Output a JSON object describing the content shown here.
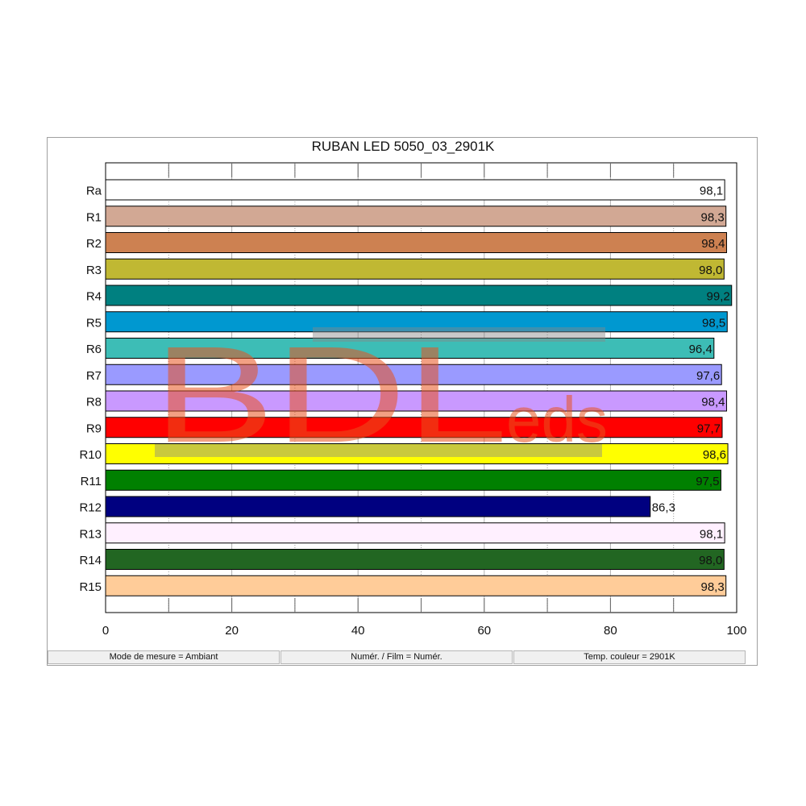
{
  "chart_data": {
    "type": "bar",
    "orientation": "horizontal",
    "title": "RUBAN LED 5050_03_2901K",
    "categories": [
      "Ra",
      "R1",
      "R2",
      "R3",
      "R4",
      "R5",
      "R6",
      "R7",
      "R8",
      "R9",
      "R10",
      "R11",
      "R12",
      "R13",
      "R14",
      "R15"
    ],
    "values": [
      98.1,
      98.3,
      98.4,
      98.0,
      99.2,
      98.5,
      96.4,
      97.6,
      98.4,
      97.7,
      98.6,
      97.5,
      86.3,
      98.1,
      98.0,
      98.3
    ],
    "value_labels": [
      "98,1",
      "98,3",
      "98,4",
      "98,0",
      "99,2",
      "98,5",
      "96,4",
      "97,6",
      "98,4",
      "97,7",
      "98,6",
      "97,5",
      "86,3",
      "98,1",
      "98,0",
      "98,3"
    ],
    "colors": [
      "#ffffff",
      "#d2a894",
      "#cd8151",
      "#c0b833",
      "#008080",
      "#0098d0",
      "#3dbdb6",
      "#9a9aff",
      "#c999ff",
      "#ff0000",
      "#ffff00",
      "#008000",
      "#000080",
      "#fff0ff",
      "#226622",
      "#ffcc99"
    ],
    "xlim": [
      0,
      100
    ],
    "xticks": [
      0,
      20,
      40,
      60,
      80,
      100
    ],
    "xtick_labels": [
      "0",
      "20",
      "40",
      "60",
      "80",
      "100"
    ],
    "grid": "vertical dotted every 10, solid every 20"
  },
  "status_bar": {
    "mode": "Mode de mesure = Ambiant",
    "film": "Numér. / Film = Numér.",
    "temp": "Temp. couleur = 2901K"
  },
  "watermark": {
    "main": "BDL",
    "suffix": "eds",
    "color": "#e8531e"
  }
}
